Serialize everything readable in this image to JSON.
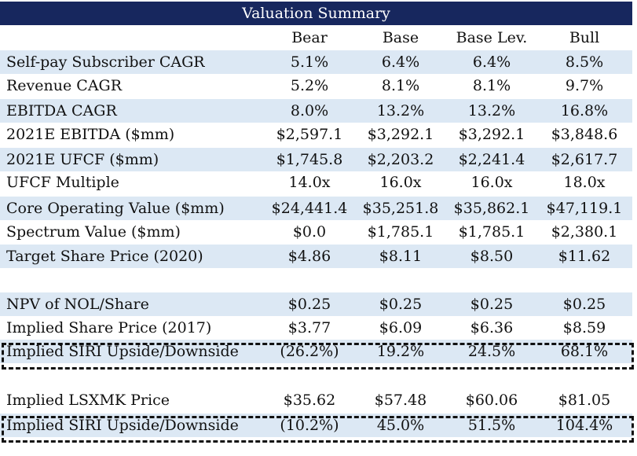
{
  "title": "Valuation Summary",
  "headers": [
    "Bear",
    "Base",
    "Base Lev.",
    "Bull"
  ],
  "rows": [
    {
      "label": "Self-pay Subscriber CAGR",
      "values": [
        "5.1%",
        "6.4%",
        "6.4%",
        "8.5%"
      ]
    },
    {
      "label": "Revenue CAGR",
      "values": [
        "5.2%",
        "8.1%",
        "8.1%",
        "9.7%"
      ]
    },
    {
      "label": "EBITDA CAGR",
      "values": [
        "8.0%",
        "13.2%",
        "13.2%",
        "16.8%"
      ]
    },
    {
      "label": "2021E EBITDA ($mm)",
      "values": [
        "$2,597.1",
        "$3,292.1",
        "$3,292.1",
        "$3,848.6"
      ]
    },
    {
      "label": "2021E UFCF ($mm)",
      "values": [
        "$1,745.8",
        "$2,203.2",
        "$2,241.4",
        "$2,617.7"
      ]
    },
    {
      "label": "UFCF Multiple",
      "values": [
        "14.0x",
        "16.0x",
        "16.0x",
        "18.0x"
      ]
    },
    {
      "label": "Core Operating Value ($mm)",
      "values": [
        "$24,441.4",
        "$35,251.8",
        "$35,862.1",
        "$47,119.1"
      ]
    },
    {
      "label": "Spectrum Value ($mm)",
      "values": [
        "$0.0",
        "$1,785.1",
        "$1,785.1",
        "$2,380.1"
      ]
    },
    {
      "label": "Target Share Price (2020)",
      "values": [
        "$4.86",
        "$8.11",
        "$8.50",
        "$11.62"
      ]
    },
    {
      "label": "NPV of NOL/Share",
      "values": [
        "$0.25",
        "$0.25",
        "$0.25",
        "$0.25"
      ]
    },
    {
      "label": "Implied Share Price (2017)",
      "values": [
        "$3.77",
        "$6.09",
        "$6.36",
        "$8.59"
      ]
    },
    {
      "label": "Implied SIRI Upside/Downside",
      "values": [
        "(26.2%)",
        "19.2%",
        "24.5%",
        "68.1%"
      ]
    },
    {
      "label": "Implied LSXMK Price",
      "values": [
        "$35.62",
        "$57.48",
        "$60.06",
        "$81.05"
      ]
    },
    {
      "label": "Implied SIRI Upside/Downside",
      "values": [
        "(10.2%)",
        "45.0%",
        "51.5%",
        "104.4%"
      ]
    }
  ]
}
